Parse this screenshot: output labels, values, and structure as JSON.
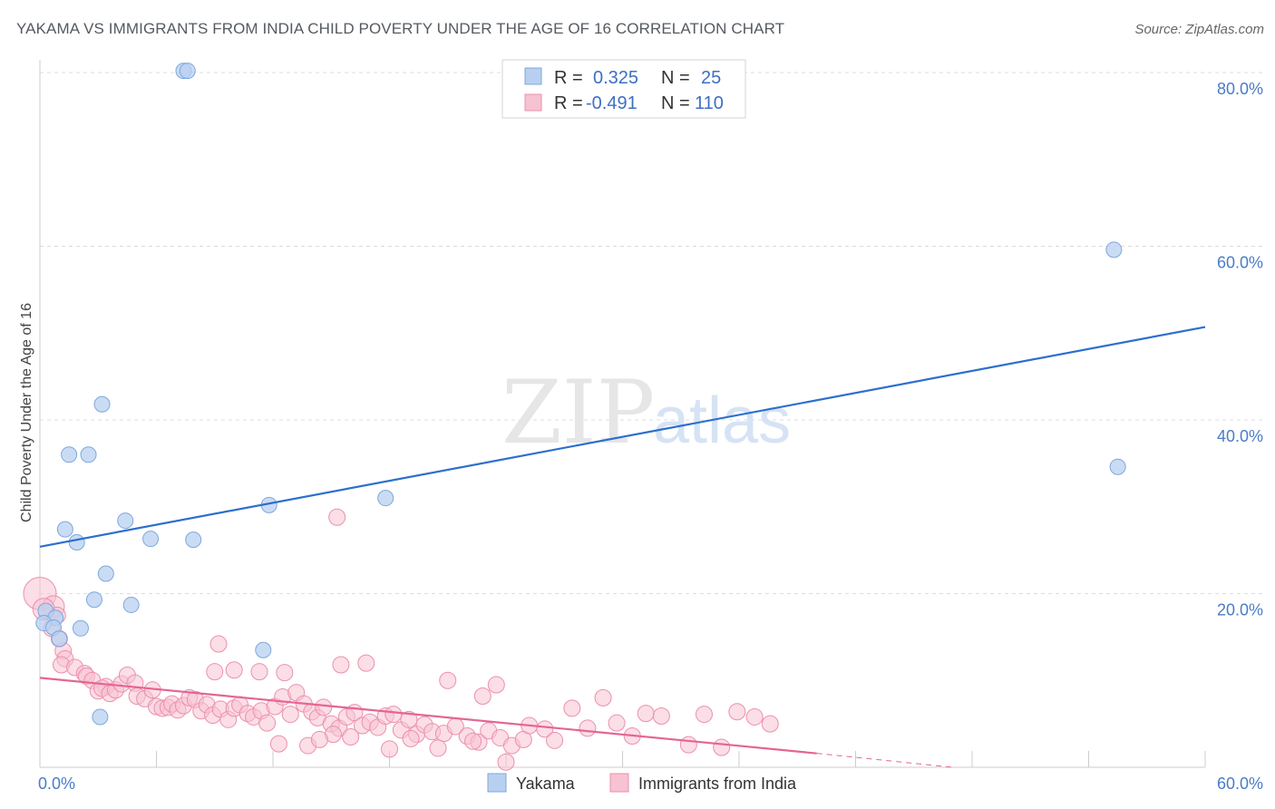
{
  "title": "YAKAMA VS IMMIGRANTS FROM INDIA CHILD POVERTY UNDER THE AGE OF 16 CORRELATION CHART",
  "source": "Source: ZipAtlas.com",
  "watermark": {
    "zip": "ZIP",
    "atlas": "atlas"
  },
  "colors": {
    "yakama_fill": "#b8d0f0",
    "yakama_stroke": "#7ea7de",
    "yakama_line": "#2c6fcd",
    "india_fill": "#f7c2d2",
    "india_stroke": "#ec8fae",
    "india_line": "#e46594",
    "grid": "#dcdcdc",
    "tick_label": "#4a7cc7"
  },
  "legend": {
    "r_label": "R =",
    "n_label": "N =",
    "rows": [
      {
        "series": "Yakama",
        "r": "0.325",
        "n": "25"
      },
      {
        "series": "Immigrants from India",
        "r": "-0.491",
        "n": "110"
      }
    ]
  },
  "chart_data": {
    "type": "scatter",
    "title": "YAKAMA VS IMMIGRANTS FROM INDIA CHILD POVERTY UNDER THE AGE OF 16 CORRELATION CHART",
    "xlabel": "",
    "ylabel": "Child Poverty Under the Age of 16",
    "xlim": [
      0,
      60
    ],
    "ylim": [
      0,
      80
    ],
    "x_tick_labels": [
      "0.0%",
      "60.0%"
    ],
    "y_ticks": [
      20,
      40,
      60,
      80
    ],
    "y_tick_labels": [
      "20.0%",
      "40.0%",
      "60.0%",
      "80.0%"
    ],
    "grid": true,
    "legend_position": "top-center",
    "series": [
      {
        "name": "Yakama",
        "points": [
          [
            7.4,
            80.2
          ],
          [
            7.6,
            80.2
          ],
          [
            55.3,
            59.6
          ],
          [
            3.2,
            41.8
          ],
          [
            1.5,
            36.0
          ],
          [
            2.5,
            36.0
          ],
          [
            55.5,
            34.6
          ],
          [
            17.8,
            31.0
          ],
          [
            11.8,
            30.2
          ],
          [
            4.4,
            28.4
          ],
          [
            1.3,
            27.4
          ],
          [
            1.9,
            25.9
          ],
          [
            5.7,
            26.3
          ],
          [
            7.9,
            26.2
          ],
          [
            3.4,
            22.3
          ],
          [
            2.8,
            19.3
          ],
          [
            4.7,
            18.7
          ],
          [
            0.3,
            18.0
          ],
          [
            0.8,
            17.2
          ],
          [
            0.2,
            16.6
          ],
          [
            0.7,
            16.1
          ],
          [
            2.1,
            16.0
          ],
          [
            1.0,
            14.8
          ],
          [
            11.5,
            13.5
          ],
          [
            3.1,
            5.8
          ]
        ],
        "trend": {
          "x": [
            0,
            60
          ],
          "y": [
            25.4,
            50.7
          ]
        }
      },
      {
        "name": "Immigrants from India",
        "points": [
          [
            0.0,
            20.0
          ],
          [
            0.7,
            18.5
          ],
          [
            0.2,
            18.2
          ],
          [
            0.9,
            17.5
          ],
          [
            0.6,
            16.0
          ],
          [
            1.0,
            14.8
          ],
          [
            1.2,
            13.4
          ],
          [
            1.3,
            12.5
          ],
          [
            1.1,
            11.8
          ],
          [
            1.8,
            11.5
          ],
          [
            2.3,
            10.8
          ],
          [
            2.4,
            10.5
          ],
          [
            2.7,
            10.0
          ],
          [
            3.4,
            9.3
          ],
          [
            3.0,
            8.8
          ],
          [
            3.2,
            9.1
          ],
          [
            3.6,
            8.5
          ],
          [
            3.9,
            8.9
          ],
          [
            4.2,
            9.6
          ],
          [
            4.5,
            10.6
          ],
          [
            4.9,
            9.7
          ],
          [
            5.0,
            8.2
          ],
          [
            5.4,
            7.9
          ],
          [
            5.8,
            8.9
          ],
          [
            6.0,
            7.0
          ],
          [
            6.3,
            6.8
          ],
          [
            6.6,
            6.9
          ],
          [
            6.8,
            7.3
          ],
          [
            7.1,
            6.6
          ],
          [
            7.4,
            7.1
          ],
          [
            7.7,
            8.0
          ],
          [
            8.0,
            7.8
          ],
          [
            8.3,
            6.5
          ],
          [
            8.6,
            7.2
          ],
          [
            8.9,
            6.0
          ],
          [
            9.3,
            6.7
          ],
          [
            9.7,
            5.5
          ],
          [
            10.0,
            6.8
          ],
          [
            10.3,
            7.2
          ],
          [
            10.7,
            6.2
          ],
          [
            11.0,
            5.8
          ],
          [
            11.4,
            6.5
          ],
          [
            11.7,
            5.1
          ],
          [
            12.1,
            7.0
          ],
          [
            12.5,
            8.1
          ],
          [
            12.9,
            6.1
          ],
          [
            13.2,
            8.6
          ],
          [
            13.6,
            7.3
          ],
          [
            14.0,
            6.4
          ],
          [
            14.3,
            5.7
          ],
          [
            14.6,
            6.9
          ],
          [
            15.0,
            5.0
          ],
          [
            15.4,
            4.5
          ],
          [
            15.8,
            5.8
          ],
          [
            16.2,
            6.3
          ],
          [
            16.6,
            4.8
          ],
          [
            17.0,
            5.2
          ],
          [
            17.4,
            4.6
          ],
          [
            17.8,
            5.9
          ],
          [
            18.2,
            6.1
          ],
          [
            18.6,
            4.3
          ],
          [
            19.0,
            5.5
          ],
          [
            19.4,
            3.8
          ],
          [
            19.8,
            4.9
          ],
          [
            20.2,
            4.1
          ],
          [
            20.8,
            3.9
          ],
          [
            21.4,
            4.7
          ],
          [
            22.0,
            3.6
          ],
          [
            22.6,
            2.9
          ],
          [
            23.1,
            4.2
          ],
          [
            23.7,
            3.4
          ],
          [
            24.3,
            2.5
          ],
          [
            24.9,
            3.2
          ],
          [
            9.2,
            14.2
          ],
          [
            9.0,
            11.0
          ],
          [
            10.0,
            11.2
          ],
          [
            11.3,
            11.0
          ],
          [
            12.6,
            10.9
          ],
          [
            15.3,
            28.8
          ],
          [
            15.5,
            11.8
          ],
          [
            16.8,
            12.0
          ],
          [
            21.0,
            10.0
          ],
          [
            22.8,
            8.2
          ],
          [
            23.5,
            9.5
          ],
          [
            25.2,
            4.8
          ],
          [
            26.0,
            4.4
          ],
          [
            26.5,
            3.1
          ],
          [
            27.4,
            6.8
          ],
          [
            28.2,
            4.5
          ],
          [
            29.0,
            8.0
          ],
          [
            29.7,
            5.1
          ],
          [
            30.5,
            3.6
          ],
          [
            31.2,
            6.2
          ],
          [
            32.0,
            5.9
          ],
          [
            33.4,
            2.6
          ],
          [
            34.2,
            6.1
          ],
          [
            35.1,
            2.3
          ],
          [
            35.9,
            6.4
          ],
          [
            36.8,
            5.8
          ],
          [
            37.6,
            5.0
          ],
          [
            13.8,
            2.5
          ],
          [
            18.0,
            2.1
          ],
          [
            12.3,
            2.7
          ],
          [
            15.1,
            3.8
          ],
          [
            16.0,
            3.5
          ],
          [
            20.5,
            2.2
          ],
          [
            22.3,
            3.0
          ],
          [
            24.0,
            0.6
          ],
          [
            14.4,
            3.2
          ],
          [
            19.1,
            3.3
          ]
        ],
        "trend": {
          "x": [
            0,
            40
          ],
          "y": [
            10.3,
            1.6
          ]
        },
        "trend_extension": {
          "x": [
            40,
            47
          ],
          "y": [
            1.6,
            0.0
          ]
        }
      }
    ]
  }
}
